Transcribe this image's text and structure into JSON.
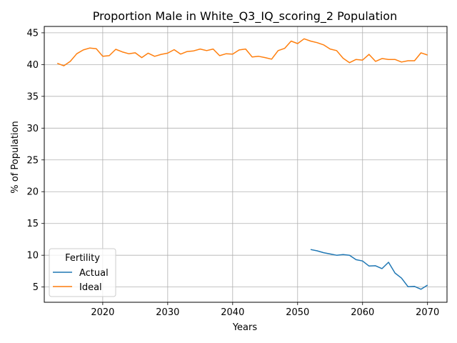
{
  "chart_data": {
    "type": "line",
    "title": "Proportion Male in White_Q3_IQ_scoring_2 Population",
    "xlabel": "Years",
    "ylabel": "% of Population",
    "xlim": [
      2011,
      2073
    ],
    "ylim": [
      2.6,
      46
    ],
    "xticks": [
      2020,
      2030,
      2040,
      2050,
      2060,
      2070
    ],
    "yticks": [
      5,
      10,
      15,
      20,
      25,
      30,
      35,
      40,
      45
    ],
    "grid": true,
    "legend": {
      "title": "Fertility",
      "placement": "lower-left"
    },
    "series": [
      {
        "name": "Actual",
        "color": "#1f77b4",
        "x": [
          2052,
          2053,
          2054,
          2055,
          2056,
          2057,
          2058,
          2059,
          2060,
          2061,
          2062,
          2063,
          2064,
          2065,
          2066,
          2067,
          2068,
          2069,
          2070
        ],
        "y": [
          10.9,
          10.7,
          10.4,
          10.2,
          10.0,
          10.1,
          10.0,
          9.3,
          9.1,
          8.3,
          8.35,
          7.9,
          8.9,
          7.2,
          6.4,
          5.05,
          5.1,
          4.65,
          5.3
        ]
      },
      {
        "name": "Ideal",
        "color": "#ff7f0e",
        "x": [
          2013,
          2014,
          2015,
          2016,
          2017,
          2018,
          2019,
          2020,
          2021,
          2022,
          2023,
          2024,
          2025,
          2026,
          2027,
          2028,
          2029,
          2030,
          2031,
          2032,
          2033,
          2034,
          2035,
          2036,
          2037,
          2038,
          2039,
          2040,
          2041,
          2042,
          2043,
          2044,
          2045,
          2046,
          2047,
          2048,
          2049,
          2050,
          2051,
          2052,
          2053,
          2054,
          2055,
          2056,
          2057,
          2058,
          2059,
          2060,
          2061,
          2062,
          2063,
          2064,
          2065,
          2066,
          2067,
          2068,
          2069,
          2070
        ],
        "y": [
          40.2,
          39.8,
          40.5,
          41.7,
          42.3,
          42.6,
          42.5,
          41.3,
          41.4,
          42.4,
          42.0,
          41.7,
          41.85,
          41.1,
          41.8,
          41.3,
          41.6,
          41.8,
          42.35,
          41.65,
          42.05,
          42.15,
          42.45,
          42.2,
          42.45,
          41.4,
          41.7,
          41.65,
          42.3,
          42.45,
          41.2,
          41.3,
          41.1,
          40.85,
          42.2,
          42.55,
          43.7,
          43.3,
          44.05,
          43.7,
          43.45,
          43.1,
          42.45,
          42.2,
          41.0,
          40.3,
          40.8,
          40.7,
          41.6,
          40.5,
          40.95,
          40.8,
          40.8,
          40.4,
          40.6,
          40.6,
          41.85,
          41.5
        ]
      }
    ]
  }
}
